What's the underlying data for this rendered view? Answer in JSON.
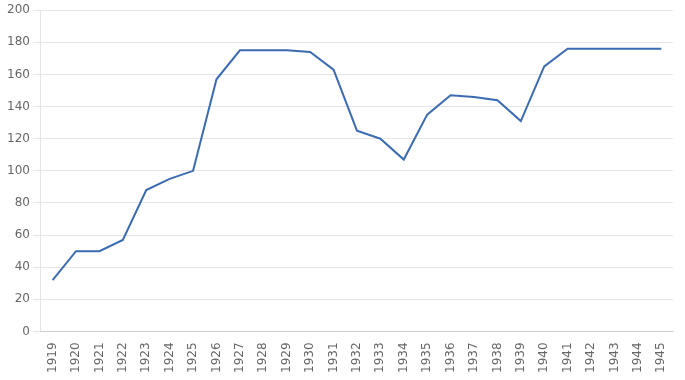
{
  "chart_data": {
    "type": "line",
    "x": [
      1919,
      1920,
      1921,
      1922,
      1923,
      1924,
      1925,
      1926,
      1927,
      1928,
      1929,
      1930,
      1931,
      1932,
      1933,
      1934,
      1935,
      1936,
      1937,
      1938,
      1939,
      1940,
      1941,
      1942,
      1943,
      1944,
      1945
    ],
    "values": [
      32,
      50,
      50,
      57,
      88,
      95,
      100,
      157,
      175,
      175,
      175,
      174,
      163,
      125,
      120,
      107,
      135,
      147,
      146,
      144,
      131,
      165,
      176,
      176,
      176,
      176,
      176
    ],
    "color": "#3B6BB0",
    "xlim": [
      1918.5,
      1945.5
    ],
    "xticks": [
      1919,
      1920,
      1921,
      1922,
      1923,
      1924,
      1925,
      1926,
      1927,
      1928,
      1929,
      1930,
      1931,
      1932,
      1933,
      1934,
      1935,
      1936,
      1937,
      1938,
      1939,
      1940,
      1941,
      1942,
      1943,
      1944,
      1945
    ],
    "ylim": [
      0,
      200
    ],
    "yticks": [
      0,
      20,
      40,
      60,
      80,
      100,
      120,
      140,
      160,
      180,
      200
    ],
    "grid": "y"
  }
}
